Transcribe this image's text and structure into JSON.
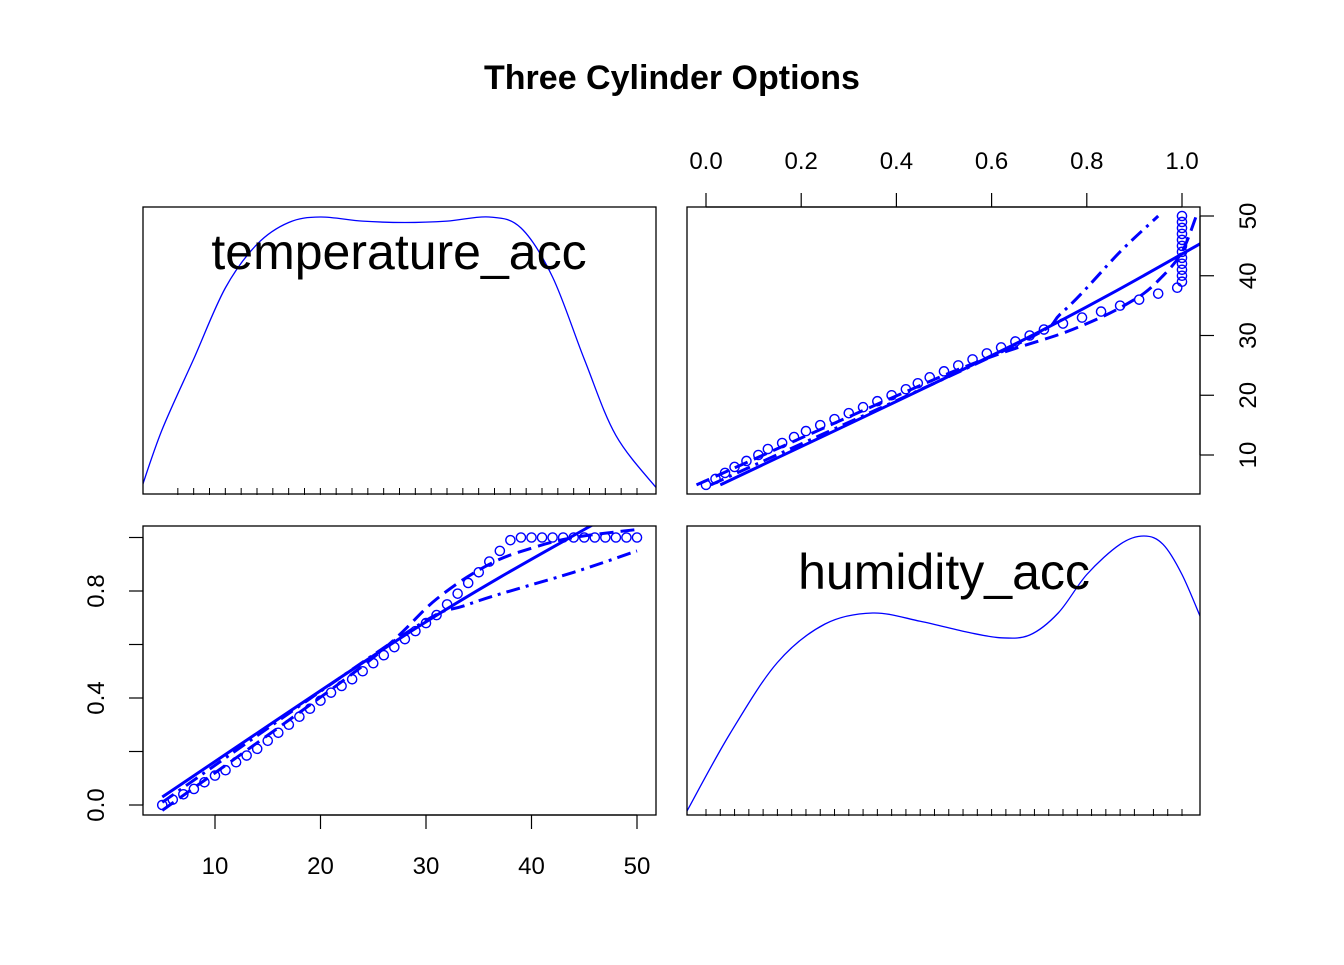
{
  "title": "Three Cylinder Options",
  "colors": {
    "series": "#0000ff",
    "axis": "#000000",
    "background": "#ffffff"
  },
  "chart_data": {
    "type": "scatterplot-matrix",
    "variables": [
      "temperature_acc",
      "humidity_acc"
    ],
    "ranges": {
      "temperature_acc": [
        5,
        50
      ],
      "humidity_acc": [
        0,
        1
      ]
    },
    "temperature_ticks": [
      10,
      20,
      30,
      40,
      50
    ],
    "humidity_ticks_top": [
      "0.0",
      "0.2",
      "0.4",
      "0.6",
      "0.8",
      "1.0"
    ],
    "humidity_ticks_left": [
      "0.0",
      "0.4",
      "0.8"
    ],
    "temperature_ticks_right": [
      "10",
      "20",
      "30",
      "40",
      "50"
    ],
    "density": {
      "temperature_acc": {
        "x": [
          3,
          5,
          8,
          11,
          14,
          17,
          20,
          24,
          28,
          32,
          36,
          39,
          42,
          45,
          48,
          52
        ],
        "y": [
          0.0,
          0.22,
          0.48,
          0.74,
          0.9,
          0.98,
          1.0,
          0.985,
          0.98,
          0.985,
          1.0,
          0.96,
          0.78,
          0.48,
          0.2,
          0.0
        ]
      },
      "humidity_acc": {
        "x": [
          -0.04,
          0.05,
          0.15,
          0.25,
          0.35,
          0.45,
          0.55,
          0.62,
          0.68,
          0.74,
          0.8,
          0.87,
          0.92,
          0.96,
          1.0,
          1.04
        ],
        "y": [
          0.0,
          0.28,
          0.54,
          0.68,
          0.72,
          0.69,
          0.65,
          0.63,
          0.64,
          0.72,
          0.86,
          0.97,
          1.0,
          0.97,
          0.86,
          0.7
        ]
      }
    },
    "rug": {
      "temperature_acc": [
        6.5,
        8,
        9.5,
        11,
        12.5,
        14,
        15.5,
        17,
        18.5,
        20,
        21.5,
        23,
        24.5,
        26,
        27.5,
        29,
        30.5,
        32,
        33.5,
        35,
        36.5,
        38,
        39.5,
        41,
        42.5,
        44,
        45.5,
        47,
        48.5,
        50
      ],
      "humidity_acc": [
        0.0,
        0.03,
        0.06,
        0.09,
        0.12,
        0.15,
        0.18,
        0.21,
        0.24,
        0.27,
        0.3,
        0.33,
        0.36,
        0.39,
        0.42,
        0.45,
        0.48,
        0.51,
        0.54,
        0.57,
        0.6,
        0.63,
        0.66,
        0.69,
        0.72,
        0.75,
        0.78,
        0.81,
        0.84,
        0.87,
        0.9,
        0.94,
        0.97,
        1.0
      ]
    },
    "points": {
      "temperature_acc": [
        5,
        6,
        7,
        8,
        9,
        10,
        11,
        12,
        13,
        14,
        15,
        16,
        17,
        18,
        19,
        20,
        21,
        22,
        23,
        24,
        25,
        26,
        27,
        28,
        29,
        30,
        31,
        32,
        33,
        34,
        35,
        36,
        37,
        38,
        39,
        40,
        41,
        42,
        43,
        44,
        45,
        46,
        47,
        48,
        49,
        50
      ],
      "humidity_acc": [
        0.0,
        0.02,
        0.04,
        0.06,
        0.085,
        0.11,
        0.13,
        0.16,
        0.185,
        0.21,
        0.24,
        0.27,
        0.3,
        0.33,
        0.36,
        0.39,
        0.42,
        0.445,
        0.47,
        0.5,
        0.53,
        0.56,
        0.59,
        0.62,
        0.65,
        0.68,
        0.71,
        0.75,
        0.79,
        0.83,
        0.87,
        0.91,
        0.95,
        0.99,
        1.0,
        1.0,
        1.0,
        1.0,
        1.0,
        1.0,
        1.0,
        1.0,
        1.0,
        1.0,
        1.0,
        1.0
      ]
    },
    "fits": {
      "solid": {
        "temperature_acc": [
          5,
          29,
          45,
          50
        ],
        "humidity_acc": [
          0.03,
          0.66,
          1.03,
          1.13
        ]
      },
      "dashed": {
        "temperature_acc": [
          5,
          24,
          31,
          36,
          40,
          44,
          50
        ],
        "humidity_acc": [
          -0.02,
          0.52,
          0.77,
          0.9,
          0.96,
          1.0,
          1.03
        ]
      },
      "dotdash": {
        "temperature_acc": [
          5,
          28,
          34,
          44,
          50
        ],
        "humidity_acc": [
          0.01,
          0.64,
          0.75,
          0.87,
          0.95
        ]
      }
    }
  }
}
